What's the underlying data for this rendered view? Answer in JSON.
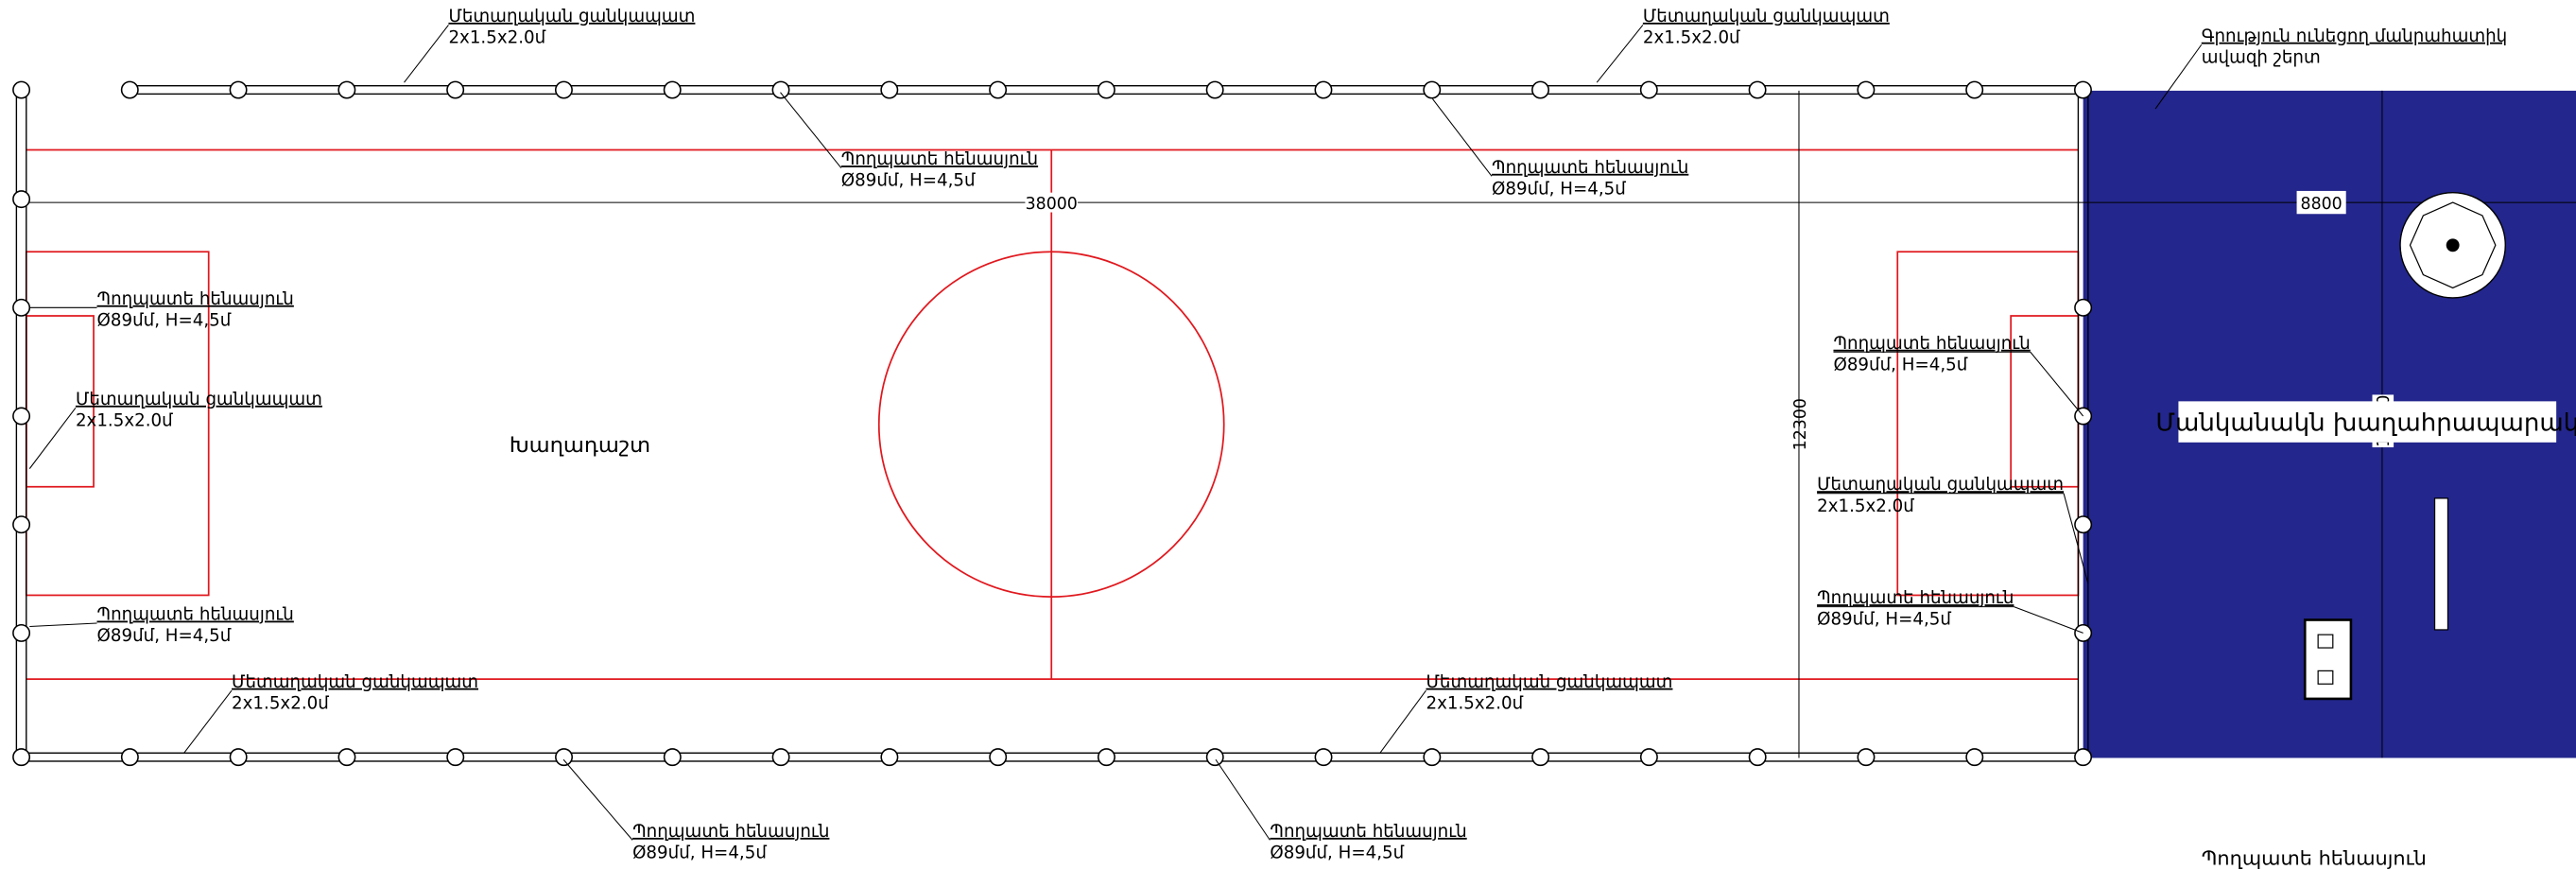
{
  "annotations": [
    {
      "title": "Մետաղական ցանկապատ",
      "spec": "2x1.5x2.0մ"
    },
    {
      "title": "Մետաղական ցանկապատ",
      "spec": "2x1.5x2.0մ"
    },
    {
      "title": "Գրություն ունեցող մանրահատիկ",
      "spec": "ավազի շերտ"
    },
    {
      "title": "Պողպատե հենասյուն",
      "spec": "Ø89մմ, H=4,5մ"
    },
    {
      "title": "Պողպատե հենասյուն",
      "spec": "Ø89մմ, H=4,5մ"
    },
    {
      "title": "Պողպատե հենասյուն",
      "spec": "Ø89մմ, H=4,5մ"
    },
    {
      "title": "Մետաղական ցանկապատ",
      "spec": "2x1.5x2.0մ"
    },
    {
      "title": "Պողպատե հենասյուն",
      "spec": "Ø89մմ, H=4,5մ"
    },
    {
      "title": "Պողպատե հենասյուն",
      "spec": "Ø89մմ, H=4,5մ"
    },
    {
      "title": "Մետաղական ցանկապատ",
      "spec": "2x1.5x2.0մ"
    },
    {
      "title": "Պողպատե հենասյուն",
      "spec": "Ø89մմ, H=4,5մ"
    },
    {
      "title": "Մետաղական ցանկապատ",
      "spec": "2x1.5x2.0մ"
    },
    {
      "title": "Մետաղական ցանկապատ",
      "spec": "2x1.5x2.0մ"
    },
    {
      "title": "Պողպատե հենասյուն",
      "spec": "Ø89մմ, H=4,5մ"
    },
    {
      "title": "Պողպատե հենասյուն",
      "spec": "Ø89մմ, H=4,5մ"
    }
  ],
  "bottom_note": "Պողպատե հենասյուն",
  "dimensions": {
    "field_length": "38000",
    "playground_width": "8800",
    "field_width": "12300",
    "playground_height": "12300"
  },
  "field_label": "Խաղադաշտ",
  "playground_label": "Մանկանակն խաղահրապարակ"
}
